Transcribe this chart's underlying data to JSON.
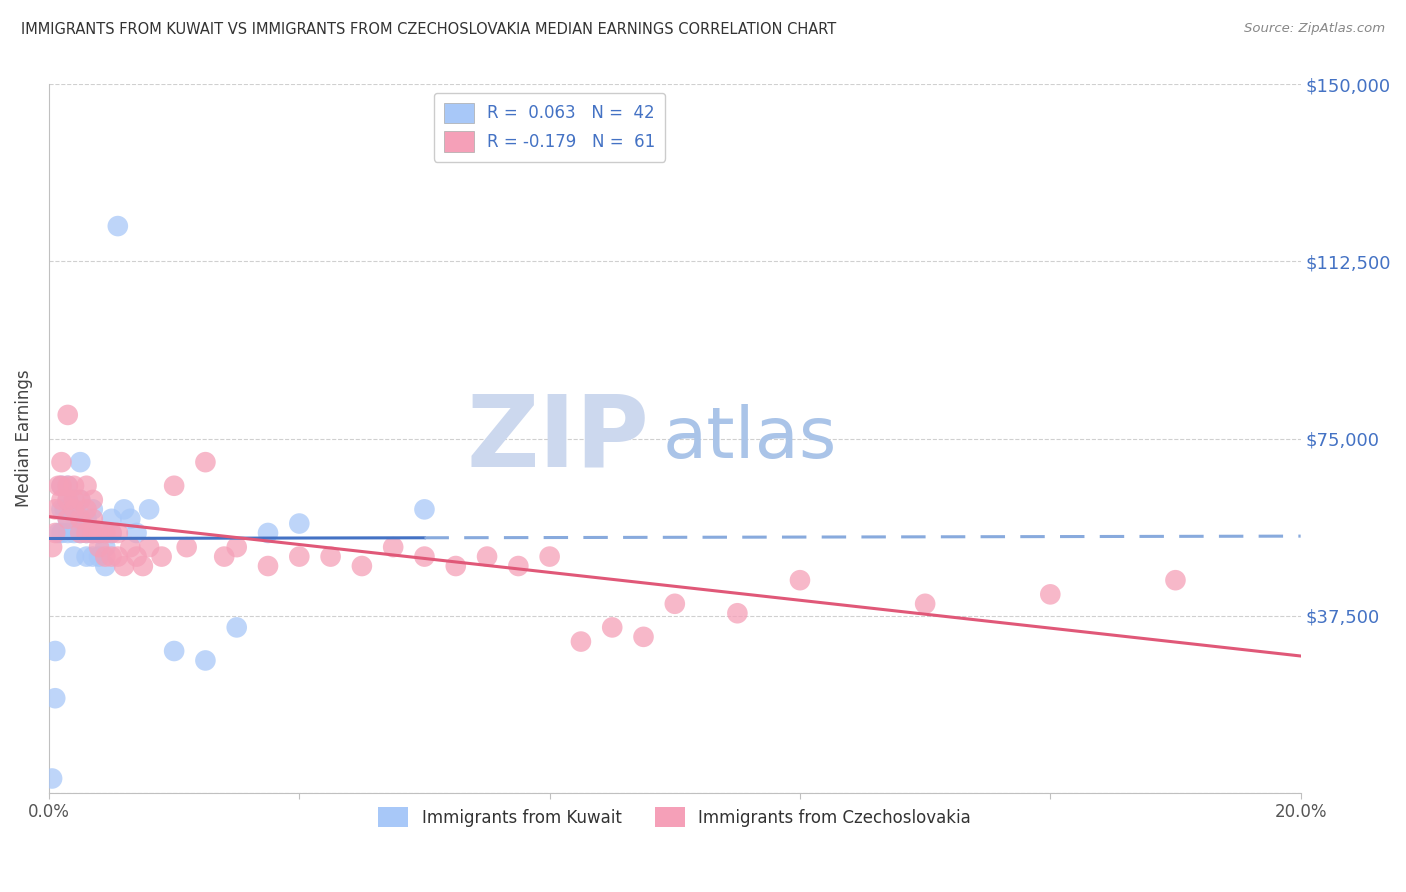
{
  "title": "IMMIGRANTS FROM KUWAIT VS IMMIGRANTS FROM CZECHOSLOVAKIA MEDIAN EARNINGS CORRELATION CHART",
  "source": "Source: ZipAtlas.com",
  "ylabel": "Median Earnings",
  "xlim": [
    0.0,
    0.2
  ],
  "ylim": [
    0,
    150000
  ],
  "yticks": [
    0,
    37500,
    75000,
    112500,
    150000
  ],
  "ytick_labels": [
    "",
    "$37,500",
    "$75,000",
    "$112,500",
    "$150,000"
  ],
  "xticks": [
    0.0,
    0.04,
    0.08,
    0.12,
    0.16,
    0.2
  ],
  "xtick_labels": [
    "0.0%",
    "",
    "",
    "",
    "",
    "20.0%"
  ],
  "legend1_label": "R =  0.063   N =  42",
  "legend2_label": "R = -0.179   N =  61",
  "series1_color": "#a8c8f8",
  "series2_color": "#f5a0b8",
  "line1_solid_color": "#4472c4",
  "line2_solid_color": "#e05878",
  "line1_dash_color": "#88aadd",
  "watermark_zip_color": "#ccd8ee",
  "watermark_atlas_color": "#aac4e8",
  "bg_color": "#ffffff",
  "grid_color": "#d0d0d0",
  "axis_color": "#c0c0c0",
  "ylabel_color": "#444444",
  "ytick_label_color": "#4472c4",
  "title_color": "#333333",
  "source_color": "#888888",
  "kuwait_x": [
    0.0005,
    0.001,
    0.001,
    0.0015,
    0.002,
    0.002,
    0.002,
    0.0025,
    0.003,
    0.003,
    0.003,
    0.003,
    0.004,
    0.004,
    0.004,
    0.005,
    0.005,
    0.005,
    0.005,
    0.006,
    0.006,
    0.006,
    0.007,
    0.007,
    0.007,
    0.008,
    0.008,
    0.009,
    0.009,
    0.01,
    0.01,
    0.011,
    0.012,
    0.013,
    0.014,
    0.016,
    0.02,
    0.025,
    0.03,
    0.035,
    0.04,
    0.06
  ],
  "kuwait_y": [
    3000,
    20000,
    30000,
    55000,
    60000,
    65000,
    55000,
    60000,
    58000,
    62000,
    65000,
    55000,
    50000,
    55000,
    60000,
    55000,
    58000,
    62000,
    70000,
    50000,
    55000,
    58000,
    50000,
    55000,
    60000,
    50000,
    55000,
    48000,
    52000,
    55000,
    58000,
    120000,
    60000,
    58000,
    55000,
    60000,
    30000,
    28000,
    35000,
    55000,
    57000,
    60000
  ],
  "czech_x": [
    0.0005,
    0.001,
    0.001,
    0.0015,
    0.002,
    0.002,
    0.002,
    0.003,
    0.003,
    0.003,
    0.003,
    0.004,
    0.004,
    0.004,
    0.005,
    0.005,
    0.005,
    0.006,
    0.006,
    0.006,
    0.007,
    0.007,
    0.007,
    0.008,
    0.008,
    0.009,
    0.009,
    0.01,
    0.01,
    0.011,
    0.011,
    0.012,
    0.013,
    0.014,
    0.015,
    0.016,
    0.018,
    0.02,
    0.022,
    0.025,
    0.028,
    0.03,
    0.035,
    0.04,
    0.045,
    0.05,
    0.055,
    0.06,
    0.065,
    0.07,
    0.075,
    0.08,
    0.085,
    0.09,
    0.095,
    0.1,
    0.11,
    0.12,
    0.14,
    0.16,
    0.18
  ],
  "czech_y": [
    52000,
    55000,
    60000,
    65000,
    62000,
    70000,
    65000,
    58000,
    62000,
    65000,
    80000,
    60000,
    62000,
    65000,
    55000,
    58000,
    62000,
    55000,
    60000,
    65000,
    55000,
    58000,
    62000,
    52000,
    55000,
    50000,
    55000,
    50000,
    55000,
    50000,
    55000,
    48000,
    52000,
    50000,
    48000,
    52000,
    50000,
    65000,
    52000,
    70000,
    50000,
    52000,
    48000,
    50000,
    50000,
    48000,
    52000,
    50000,
    48000,
    50000,
    48000,
    50000,
    32000,
    35000,
    33000,
    40000,
    38000,
    45000,
    40000,
    42000,
    45000
  ]
}
